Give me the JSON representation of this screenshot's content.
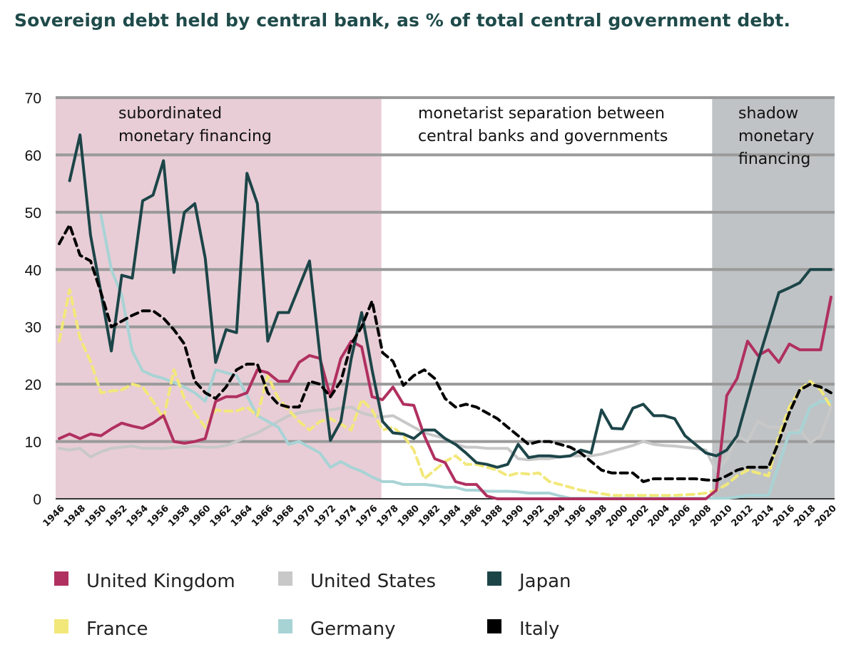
{
  "chart_data": {
    "type": "line",
    "title": "Sovereign debt held by central bank, as % of total central government debt.",
    "xlabel": "",
    "ylabel": "",
    "xlim": [
      1946,
      2020
    ],
    "ylim": [
      0,
      70
    ],
    "yticks": [
      0,
      10,
      20,
      30,
      40,
      50,
      60,
      70
    ],
    "xticks": [
      1946,
      1948,
      1950,
      1952,
      1954,
      1956,
      1958,
      1960,
      1962,
      1964,
      1966,
      1968,
      1970,
      1972,
      1974,
      1976,
      1978,
      1980,
      1982,
      1984,
      1986,
      1988,
      1990,
      1992,
      1994,
      1996,
      1998,
      2000,
      2002,
      2004,
      2006,
      2008,
      2010,
      2012,
      2014,
      2016,
      2018,
      2020
    ],
    "grid": true,
    "legend_position": "bottom",
    "regions": [
      {
        "label": [
          "subordinated",
          "monetary financing"
        ],
        "from": 1946,
        "to": 1976.9,
        "color": "#e8cdd6"
      },
      {
        "label": [
          "monetarist separation between",
          "central banks and governments"
        ],
        "from": 1976.9,
        "to": 2008.6,
        "color": "#ffffff"
      },
      {
        "label": [
          "shadow",
          "monetary",
          "financing"
        ],
        "from": 2008.6,
        "to": 2020.5,
        "color": "#c0c3c5"
      }
    ],
    "series": [
      {
        "name": "United Kingdom",
        "color": "#b03060",
        "dashed": false,
        "width": 4,
        "x": [
          1946,
          1947,
          1948,
          1949,
          1950,
          1951,
          1952,
          1953,
          1954,
          1955,
          1956,
          1957,
          1958,
          1959,
          1960,
          1961,
          1962,
          1963,
          1964,
          1965,
          1966,
          1967,
          1968,
          1969,
          1970,
          1971,
          1972,
          1973,
          1974,
          1975,
          1976,
          1977,
          1978,
          1979,
          1980,
          1981,
          1982,
          1983,
          1984,
          1985,
          1986,
          1987,
          1988,
          1989,
          1990,
          1991,
          1992,
          1993,
          1994,
          1995,
          1996,
          1997,
          1998,
          1999,
          2000,
          2001,
          2002,
          2003,
          2004,
          2005,
          2006,
          2007,
          2008,
          2009,
          2010,
          2011,
          2012,
          2013,
          2014,
          2015,
          2016,
          2017,
          2018,
          2019,
          2020
        ],
        "values": [
          10.5,
          11.3,
          10.5,
          11.3,
          11,
          12.2,
          13.2,
          12.7,
          12.3,
          13.2,
          14.5,
          10,
          9.7,
          10,
          10.5,
          17,
          17.8,
          17.8,
          18.5,
          22.5,
          22,
          20.5,
          20.5,
          23.8,
          25,
          24.5,
          17.8,
          24.5,
          27.5,
          26.5,
          17.8,
          17.3,
          19.5,
          16.5,
          16.3,
          11,
          7,
          6.3,
          3,
          2.5,
          2.5,
          0.5,
          0,
          0,
          0,
          0,
          0,
          0,
          0,
          0,
          0,
          0,
          0,
          0,
          0,
          0,
          0,
          0,
          0,
          0,
          0,
          0,
          0,
          1.5,
          18,
          21,
          27.5,
          25,
          26,
          23.8,
          27,
          26,
          26,
          26,
          35.2
        ]
      },
      {
        "name": "United States",
        "color": "#c8c8c8",
        "dashed": false,
        "width": 4,
        "x": [
          1946,
          1947,
          1948,
          1949,
          1950,
          1951,
          1952,
          1953,
          1954,
          1955,
          1956,
          1957,
          1958,
          1959,
          1960,
          1961,
          1962,
          1963,
          1964,
          1965,
          1966,
          1967,
          1968,
          1969,
          1970,
          1971,
          1972,
          1973,
          1974,
          1975,
          1976,
          1977,
          1978,
          1979,
          1980,
          1981,
          1982,
          1983,
          1984,
          1985,
          1986,
          1987,
          1988,
          1989,
          1990,
          1991,
          1992,
          1993,
          1994,
          1995,
          1996,
          1997,
          1998,
          1999,
          2000,
          2001,
          2002,
          2003,
          2004,
          2005,
          2006,
          2007,
          2008,
          2009,
          2010,
          2011,
          2012,
          2013,
          2014,
          2015,
          2016,
          2017,
          2018,
          2019,
          2020
        ],
        "values": [
          8.8,
          8.5,
          8.8,
          7.3,
          8.2,
          8.8,
          9,
          9.2,
          8.8,
          8.8,
          8.8,
          9,
          9,
          9.2,
          9,
          9,
          9.3,
          10,
          10.8,
          11.5,
          12.5,
          13.5,
          14.5,
          15,
          15.3,
          15.5,
          15.5,
          15.8,
          16,
          15,
          14.5,
          14.3,
          14.5,
          13.5,
          12.5,
          11.5,
          11,
          10.5,
          9.5,
          9,
          9,
          8.8,
          8.8,
          8.8,
          7,
          6.8,
          7,
          7,
          7.3,
          7.5,
          7.5,
          7.5,
          7.8,
          8.3,
          8.8,
          9.3,
          10,
          9.5,
          9.3,
          9.2,
          9,
          8.8,
          8.5,
          4.8,
          7,
          11,
          10,
          13.5,
          12.5,
          12.5,
          11.5,
          12,
          9.8,
          11,
          16
        ]
      },
      {
        "name": "Japan",
        "color": "#1c4548",
        "dashed": false,
        "width": 4,
        "x": [
          1947,
          1948,
          1949,
          1950,
          1951,
          1952,
          1953,
          1954,
          1955,
          1956,
          1957,
          1958,
          1959,
          1960,
          1961,
          1962,
          1963,
          1964,
          1965,
          1966,
          1967,
          1968,
          1969,
          1970,
          1971,
          1972,
          1973,
          1974,
          1975,
          1976,
          1977,
          1978,
          1979,
          1980,
          1981,
          1982,
          1983,
          1984,
          1985,
          1986,
          1987,
          1988,
          1989,
          1990,
          1991,
          1992,
          1993,
          1994,
          1995,
          1996,
          1997,
          1998,
          1999,
          2000,
          2001,
          2002,
          2003,
          2004,
          2005,
          2006,
          2007,
          2008,
          2009,
          2010,
          2011,
          2012,
          2013,
          2014,
          2015,
          2016,
          2017,
          2018,
          2019,
          2020
        ],
        "values": [
          55.5,
          63.5,
          46,
          36,
          25.8,
          39,
          38.5,
          52,
          53,
          59,
          39.5,
          50,
          51.5,
          42,
          23.8,
          29.5,
          29,
          56.8,
          51.5,
          27.5,
          32.5,
          32.5,
          37,
          41.5,
          25,
          10.2,
          13.5,
          24.5,
          32.5,
          22.5,
          13.5,
          11.5,
          11.3,
          10.5,
          12,
          12,
          10.5,
          9.5,
          8,
          6.3,
          6,
          5.5,
          6,
          9.5,
          7.2,
          7.5,
          7.5,
          7.3,
          7.5,
          8.5,
          8,
          15.5,
          12.3,
          12.2,
          15.8,
          16.5,
          14.5,
          14.5,
          14,
          11,
          9.5,
          8,
          7.5,
          8.5,
          11,
          17.5,
          24,
          30,
          36,
          36.8,
          37.7,
          40,
          40,
          40
        ]
      },
      {
        "name": "France",
        "color": "#f2e87a",
        "dashed": true,
        "width": 4,
        "x": [
          1946,
          1947,
          1948,
          1949,
          1950,
          1951,
          1952,
          1953,
          1954,
          1955,
          1956,
          1957,
          1958,
          1959,
          1960,
          1961,
          1962,
          1963,
          1964,
          1965,
          1966,
          1967,
          1968,
          1969,
          1970,
          1971,
          1972,
          1973,
          1974,
          1975,
          1976,
          1977,
          1978,
          1979,
          1980,
          1981,
          1982,
          1983,
          1984,
          1985,
          1986,
          1987,
          1988,
          1989,
          1990,
          1991,
          1992,
          1993,
          1994,
          1995,
          1996,
          1997,
          1998,
          1999,
          2000,
          2001,
          2002,
          2003,
          2004,
          2005,
          2006,
          2007,
          2008,
          2009,
          2010,
          2011,
          2012,
          2013,
          2014,
          2015,
          2016,
          2017,
          2018,
          2019,
          2020
        ],
        "values": [
          27.5,
          36.5,
          28,
          24,
          18.5,
          18.8,
          19,
          20,
          19.5,
          17,
          14,
          22.5,
          17.5,
          15,
          12.5,
          15.5,
          15.3,
          15.3,
          16,
          14.5,
          21.5,
          17.5,
          15.5,
          13.5,
          12,
          13.5,
          14,
          13,
          12,
          17.3,
          15.5,
          12,
          12.5,
          11,
          8.5,
          3.5,
          5,
          6.5,
          7.5,
          6,
          6,
          5.5,
          5,
          4,
          4.5,
          4.3,
          4.5,
          3,
          2.5,
          2,
          1.5,
          1.2,
          0.9,
          0.6,
          0.6,
          0.6,
          0.6,
          0.6,
          0.6,
          0.6,
          0.7,
          0.8,
          1,
          1.5,
          2.5,
          4,
          5,
          4.5,
          4,
          11,
          16,
          19,
          20.5,
          19,
          16
        ]
      },
      {
        "name": "Germany",
        "color": "#a8d3d5",
        "dashed": false,
        "width": 4,
        "x": [
          1950,
          1951,
          1952,
          1953,
          1954,
          1955,
          1956,
          1957,
          1958,
          1959,
          1960,
          1961,
          1962,
          1963,
          1964,
          1965,
          1966,
          1967,
          1968,
          1969,
          1970,
          1971,
          1972,
          1973,
          1974,
          1975,
          1976,
          1977,
          1978,
          1979,
          1980,
          1981,
          1982,
          1983,
          1984,
          1985,
          1986,
          1987,
          1988,
          1989,
          1990,
          1991,
          1992,
          1993,
          1994,
          1995,
          1996,
          1997,
          1998,
          1999,
          2000,
          2001,
          2002,
          2003,
          2004,
          2005,
          2006,
          2007,
          2008,
          2009,
          2010,
          2011,
          2012,
          2013,
          2014,
          2015,
          2016,
          2017,
          2018,
          2019,
          2020
        ],
        "values": [
          49.5,
          40,
          35.5,
          25.8,
          22.3,
          21.5,
          21,
          20.3,
          19.5,
          18.5,
          17,
          22.5,
          22,
          21.5,
          18,
          14.5,
          13.5,
          12.5,
          9.5,
          10,
          9,
          8,
          5.5,
          6.5,
          5.5,
          4.8,
          3.8,
          3,
          3,
          2.5,
          2.5,
          2.5,
          2.3,
          2,
          2,
          1.5,
          1.5,
          1.3,
          1.3,
          1.3,
          1.2,
          1,
          1,
          1,
          0.5,
          0.1,
          0.1,
          0.1,
          0.1,
          0.1,
          0.1,
          0.1,
          0.1,
          0.1,
          0.1,
          0.1,
          0.1,
          0.1,
          0.1,
          0.1,
          0.1,
          0.3,
          0.6,
          0.6,
          0.6,
          6,
          11.5,
          11.5,
          16,
          17,
          17
        ]
      },
      {
        "name": "Italy",
        "color": "#000000",
        "dashed": true,
        "width": 4,
        "x": [
          1946,
          1947,
          1948,
          1949,
          1950,
          1951,
          1952,
          1953,
          1954,
          1955,
          1956,
          1957,
          1958,
          1959,
          1960,
          1961,
          1962,
          1963,
          1964,
          1965,
          1966,
          1967,
          1968,
          1969,
          1970,
          1971,
          1972,
          1973,
          1974,
          1975,
          1976,
          1977,
          1978,
          1979,
          1980,
          1981,
          1982,
          1983,
          1984,
          1985,
          1986,
          1987,
          1988,
          1989,
          1990,
          1991,
          1992,
          1993,
          1994,
          1995,
          1996,
          1997,
          1998,
          1999,
          2000,
          2001,
          2002,
          2003,
          2004,
          2005,
          2006,
          2007,
          2008,
          2009,
          2010,
          2011,
          2012,
          2013,
          2014,
          2015,
          2016,
          2017,
          2018,
          2019,
          2020
        ],
        "values": [
          44.5,
          47.8,
          42.5,
          41.5,
          36,
          30,
          31,
          32,
          32.8,
          32.8,
          31.5,
          29.5,
          27,
          20.5,
          18.5,
          17.5,
          19.5,
          22.5,
          23.5,
          23.5,
          18.5,
          16.5,
          16,
          16,
          20.5,
          20,
          17.8,
          20.5,
          27,
          30,
          34.5,
          25.5,
          24,
          19.8,
          21.5,
          22.5,
          21,
          17.5,
          16,
          16.5,
          16,
          15,
          14,
          12.5,
          11,
          9.5,
          10,
          10,
          9.5,
          9,
          8,
          6.5,
          5,
          4.5,
          4.5,
          4.5,
          3,
          3.5,
          3.5,
          3.5,
          3.5,
          3.5,
          3.3,
          3.2,
          4,
          5,
          5.5,
          5.5,
          5.5,
          10,
          15,
          19,
          20,
          19.5,
          18.5
        ]
      }
    ]
  }
}
